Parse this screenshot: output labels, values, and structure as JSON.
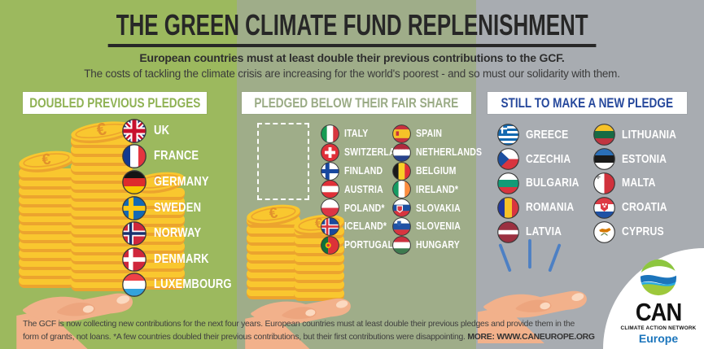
{
  "header": {
    "title": "THE GREEN CLIMATE FUND REPLENISHMENT",
    "subtitle_bold": "European countries must at least double their previous contributions to the GCF.",
    "subtitle": "The costs of tackling the climate crisis are increasing for the world's poorest - and so must our solidarity with them."
  },
  "columns": [
    {
      "header": "DOUBLED PREVIOUS PLEDGES",
      "countries": [
        {
          "label": "UK",
          "flag": "uk"
        },
        {
          "label": "FRANCE",
          "flag": "france"
        },
        {
          "label": "GERMANY",
          "flag": "germany"
        },
        {
          "label": "SWEDEN",
          "flag": "sweden"
        },
        {
          "label": "NORWAY",
          "flag": "norway"
        },
        {
          "label": "DENMARK",
          "flag": "denmark"
        },
        {
          "label": "LUXEMBOURG",
          "flag": "luxembourg"
        }
      ]
    },
    {
      "header": "PLEDGED BELOW THEIR FAIR SHARE",
      "countries_left": [
        {
          "label": "ITALY",
          "flag": "italy"
        },
        {
          "label": "SWITZERLAND",
          "flag": "switzerland"
        },
        {
          "label": "FINLAND",
          "flag": "finland"
        },
        {
          "label": "AUSTRIA",
          "flag": "austria"
        },
        {
          "label": "POLAND*",
          "flag": "poland"
        },
        {
          "label": "ICELAND*",
          "flag": "iceland"
        },
        {
          "label": "PORTUGAL",
          "flag": "portugal"
        }
      ],
      "countries_right": [
        {
          "label": "SPAIN",
          "flag": "spain"
        },
        {
          "label": "NETHERLANDS",
          "flag": "netherlands"
        },
        {
          "label": "BELGIUM",
          "flag": "belgium"
        },
        {
          "label": "IRELAND*",
          "flag": "ireland"
        },
        {
          "label": "SLOVAKIA",
          "flag": "slovakia"
        },
        {
          "label": "SLOVENIA",
          "flag": "slovenia"
        },
        {
          "label": "HUNGARY",
          "flag": "hungary"
        }
      ]
    },
    {
      "header": "STILL TO MAKE A NEW PLEDGE",
      "countries_left": [
        {
          "label": "GREECE",
          "flag": "greece"
        },
        {
          "label": "CZECHIA",
          "flag": "czechia"
        },
        {
          "label": "BULGARIA",
          "flag": "bulgaria"
        },
        {
          "label": "ROMANIA",
          "flag": "romania"
        },
        {
          "label": "LATVIA",
          "flag": "latvia"
        }
      ],
      "countries_right": [
        {
          "label": "LITHUANIA",
          "flag": "lithuania"
        },
        {
          "label": "ESTONIA",
          "flag": "estonia"
        },
        {
          "label": "MALTA",
          "flag": "malta"
        },
        {
          "label": "CROATIA",
          "flag": "croatia"
        },
        {
          "label": "CYPRUS",
          "flag": "cyprus"
        }
      ]
    }
  ],
  "footer": {
    "line1": "The GCF is now collecting new contributions for the next four years. European countries must at least double their previous pledges and provide them in the",
    "line2": "form of grants, not loans. *A few countries doubled their previous contributions, but their first contributions were disappointing. ",
    "more_label": "MORE: WWW.CANEUROPE.ORG"
  },
  "logo": {
    "org": "CAN",
    "tagline": "CLIMATE ACTION NETWORK",
    "region": "Europe"
  },
  "icons": {
    "coin_symbol": "€"
  },
  "colors": {
    "band_doubled": "#9cb95e",
    "band_below": "#9fad89",
    "band_new_pledge": "#a8acb1",
    "accent_doubled": "#8fb254",
    "accent_below": "#9aab85",
    "accent_new_pledge": "#27499c",
    "title_text": "#272727",
    "country_label": "#ffffff",
    "coin": "#f9c72f",
    "coin_edge": "#eca42e",
    "skin": "#f2b18b",
    "footer_text": "#3f3f3f",
    "logo_blue": "#1b75bc"
  },
  "flags": {
    "uk": [
      [
        "r",
        0,
        0,
        60,
        60,
        "#1a2f7a"
      ],
      [
        "l",
        0,
        0,
        60,
        60,
        "#ffffff",
        13
      ],
      [
        "l",
        60,
        0,
        0,
        60,
        "#ffffff",
        13
      ],
      [
        "l",
        0,
        0,
        60,
        60,
        "#c8102e",
        5
      ],
      [
        "l",
        60,
        0,
        0,
        60,
        "#c8102e",
        5
      ],
      [
        "r",
        21,
        0,
        18,
        60,
        "#ffffff"
      ],
      [
        "r",
        0,
        21,
        60,
        18,
        "#ffffff"
      ],
      [
        "r",
        25,
        0,
        10,
        60,
        "#c8102e"
      ],
      [
        "r",
        0,
        25,
        60,
        10,
        "#c8102e"
      ]
    ],
    "france": [
      [
        "r",
        0,
        0,
        20,
        60,
        "#123a8f"
      ],
      [
        "r",
        20,
        0,
        20,
        60,
        "#ffffff"
      ],
      [
        "r",
        40,
        0,
        20,
        60,
        "#e4353f"
      ]
    ],
    "germany": [
      [
        "r",
        0,
        0,
        60,
        20,
        "#151515"
      ],
      [
        "r",
        0,
        20,
        60,
        20,
        "#dd2c2c"
      ],
      [
        "r",
        0,
        40,
        60,
        20,
        "#f7c800"
      ]
    ],
    "sweden": [
      [
        "r",
        0,
        0,
        60,
        60,
        "#1569b3"
      ],
      [
        "r",
        16,
        0,
        12,
        60,
        "#fdc916"
      ],
      [
        "r",
        0,
        24,
        60,
        12,
        "#fdc916"
      ]
    ],
    "norway": [
      [
        "r",
        0,
        0,
        60,
        60,
        "#d0273c"
      ],
      [
        "r",
        14,
        0,
        14,
        60,
        "#ffffff"
      ],
      [
        "r",
        0,
        23,
        60,
        14,
        "#ffffff"
      ],
      [
        "r",
        17.5,
        0,
        7,
        60,
        "#19316f"
      ],
      [
        "r",
        0,
        26.5,
        60,
        7,
        "#19316f"
      ]
    ],
    "denmark": [
      [
        "r",
        0,
        0,
        60,
        60,
        "#d0273c"
      ],
      [
        "r",
        16,
        0,
        11,
        60,
        "#ffffff"
      ],
      [
        "r",
        0,
        24.5,
        60,
        11,
        "#ffffff"
      ]
    ],
    "luxembourg": [
      [
        "r",
        0,
        0,
        60,
        20,
        "#ee4147"
      ],
      [
        "r",
        0,
        20,
        60,
        20,
        "#ffffff"
      ],
      [
        "r",
        0,
        40,
        60,
        20,
        "#33a3dc"
      ]
    ],
    "italy": [
      [
        "r",
        0,
        0,
        20,
        60,
        "#169b52"
      ],
      [
        "r",
        20,
        0,
        20,
        60,
        "#ffffff"
      ],
      [
        "r",
        40,
        0,
        20,
        60,
        "#d8353f"
      ]
    ],
    "switzerland": [
      [
        "r",
        0,
        0,
        60,
        60,
        "#e03038"
      ],
      [
        "r",
        25,
        13,
        10,
        34,
        "#ffffff"
      ],
      [
        "r",
        13,
        25,
        34,
        10,
        "#ffffff"
      ]
    ],
    "finland": [
      [
        "r",
        0,
        0,
        60,
        60,
        "#ffffff"
      ],
      [
        "r",
        15,
        0,
        13,
        60,
        "#17479e"
      ],
      [
        "r",
        0,
        23.5,
        60,
        13,
        "#17479e"
      ]
    ],
    "austria": [
      [
        "r",
        0,
        0,
        60,
        20,
        "#e03038"
      ],
      [
        "r",
        0,
        20,
        60,
        20,
        "#ffffff"
      ],
      [
        "r",
        0,
        40,
        60,
        20,
        "#e03038"
      ]
    ],
    "poland": [
      [
        "r",
        0,
        0,
        60,
        30,
        "#ffffff"
      ],
      [
        "r",
        0,
        30,
        60,
        30,
        "#dc3545"
      ]
    ],
    "iceland": [
      [
        "r",
        0,
        0,
        60,
        60,
        "#1b4a9c"
      ],
      [
        "r",
        14,
        0,
        14,
        60,
        "#ffffff"
      ],
      [
        "r",
        0,
        23,
        60,
        14,
        "#ffffff"
      ],
      [
        "r",
        17.5,
        0,
        7,
        60,
        "#d8353f"
      ],
      [
        "r",
        0,
        26.5,
        60,
        7,
        "#d8353f"
      ]
    ],
    "portugal": [
      [
        "r",
        0,
        0,
        24,
        60,
        "#10713a"
      ],
      [
        "r",
        24,
        0,
        36,
        60,
        "#dc3238"
      ],
      [
        "c",
        24,
        30,
        9,
        "#f7c800"
      ],
      [
        "c",
        24,
        30,
        5,
        "#dc3238"
      ]
    ],
    "spain": [
      [
        "r",
        0,
        0,
        60,
        16,
        "#c8313e"
      ],
      [
        "r",
        0,
        16,
        60,
        28,
        "#f6c228"
      ],
      [
        "r",
        0,
        44,
        60,
        16,
        "#c8313e"
      ],
      [
        "r",
        12,
        22,
        9,
        14,
        "#c8313e"
      ]
    ],
    "netherlands": [
      [
        "r",
        0,
        0,
        60,
        20,
        "#b0293c"
      ],
      [
        "r",
        0,
        20,
        60,
        20,
        "#ffffff"
      ],
      [
        "r",
        0,
        40,
        60,
        20,
        "#27428c"
      ]
    ],
    "belgium": [
      [
        "r",
        0,
        0,
        20,
        60,
        "#1a1a1a"
      ],
      [
        "r",
        20,
        0,
        20,
        60,
        "#f8d028"
      ],
      [
        "r",
        40,
        0,
        20,
        60,
        "#e03038"
      ]
    ],
    "ireland": [
      [
        "r",
        0,
        0,
        20,
        60,
        "#169b62"
      ],
      [
        "r",
        20,
        0,
        20,
        60,
        "#ffffff"
      ],
      [
        "r",
        40,
        0,
        20,
        60,
        "#ff8d3e"
      ]
    ],
    "slovakia": [
      [
        "r",
        0,
        0,
        60,
        20,
        "#ffffff"
      ],
      [
        "r",
        0,
        20,
        60,
        20,
        "#1c4fa0"
      ],
      [
        "r",
        0,
        40,
        60,
        20,
        "#d8353f"
      ],
      [
        "p",
        "14,22 34,22 34,38 24,46 14,38",
        "#ffffff"
      ],
      [
        "p",
        "17,25 31,25 31,37 24,42 17,37",
        "#d8353f"
      ]
    ],
    "slovenia": [
      [
        "r",
        0,
        0,
        60,
        20,
        "#ffffff"
      ],
      [
        "r",
        0,
        20,
        60,
        20,
        "#2052a5"
      ],
      [
        "r",
        0,
        40,
        60,
        20,
        "#d8353f"
      ],
      [
        "p",
        "16,12 28,12 28,24 22,29 16,24",
        "#2b5fb0"
      ]
    ],
    "hungary": [
      [
        "r",
        0,
        0,
        60,
        20,
        "#cd3140"
      ],
      [
        "r",
        0,
        20,
        60,
        20,
        "#ffffff"
      ],
      [
        "r",
        0,
        40,
        60,
        20,
        "#3d7a4e"
      ]
    ],
    "greece": [
      [
        "r",
        0,
        0,
        60,
        60,
        "#ffffff"
      ],
      [
        "r",
        0,
        0,
        60,
        6.7,
        "#1269b0"
      ],
      [
        "r",
        0,
        13.3,
        60,
        6.7,
        "#1269b0"
      ],
      [
        "r",
        0,
        26.7,
        60,
        6.7,
        "#1269b0"
      ],
      [
        "r",
        0,
        40,
        60,
        6.7,
        "#1269b0"
      ],
      [
        "r",
        0,
        53.3,
        60,
        6.7,
        "#1269b0"
      ],
      [
        "r",
        0,
        0,
        27,
        27,
        "#1269b0"
      ],
      [
        "r",
        11,
        0,
        5,
        27,
        "#ffffff"
      ],
      [
        "r",
        0,
        11,
        27,
        5,
        "#ffffff"
      ]
    ],
    "czechia": [
      [
        "r",
        0,
        0,
        60,
        30,
        "#ffffff"
      ],
      [
        "r",
        0,
        30,
        60,
        30,
        "#d8353f"
      ],
      [
        "p",
        "0,0 32,30 0,60",
        "#1c4fa0"
      ]
    ],
    "bulgaria": [
      [
        "r",
        0,
        0,
        60,
        20,
        "#ffffff"
      ],
      [
        "r",
        0,
        20,
        60,
        20,
        "#119b77"
      ],
      [
        "r",
        0,
        40,
        60,
        20,
        "#d8353f"
      ]
    ],
    "romania": [
      [
        "r",
        0,
        0,
        20,
        60,
        "#20389f"
      ],
      [
        "r",
        20,
        0,
        20,
        60,
        "#f6c228"
      ],
      [
        "r",
        40,
        0,
        20,
        60,
        "#d8353f"
      ]
    ],
    "latvia": [
      [
        "r",
        0,
        0,
        60,
        60,
        "#9b3040"
      ],
      [
        "r",
        0,
        24,
        60,
        12,
        "#ffffff"
      ]
    ],
    "lithuania": [
      [
        "r",
        0,
        0,
        60,
        20,
        "#f6c228"
      ],
      [
        "r",
        0,
        20,
        60,
        20,
        "#176a44"
      ],
      [
        "r",
        0,
        40,
        60,
        20,
        "#c03540"
      ]
    ],
    "estonia": [
      [
        "r",
        0,
        0,
        60,
        20,
        "#2a6fb8"
      ],
      [
        "r",
        0,
        20,
        60,
        20,
        "#1a1a1a"
      ],
      [
        "r",
        0,
        40,
        60,
        20,
        "#ffffff"
      ]
    ],
    "malta": [
      [
        "r",
        0,
        0,
        30,
        60,
        "#ffffff"
      ],
      [
        "r",
        30,
        0,
        30,
        60,
        "#d0313c"
      ],
      [
        "r",
        11,
        6,
        4,
        12,
        "#9a9a9a"
      ],
      [
        "r",
        7,
        10,
        12,
        4,
        "#9a9a9a"
      ]
    ],
    "croatia": [
      [
        "r",
        0,
        0,
        60,
        20,
        "#dd3a44"
      ],
      [
        "r",
        0,
        20,
        60,
        20,
        "#ffffff"
      ],
      [
        "r",
        0,
        40,
        60,
        20,
        "#2052a5"
      ],
      [
        "p",
        "20,16 40,16 40,32 30,40 20,32",
        "#dd3a44"
      ],
      [
        "r",
        24,
        18,
        5,
        5,
        "#ffffff"
      ],
      [
        "r",
        32,
        18,
        5,
        5,
        "#ffffff"
      ],
      [
        "r",
        28,
        24,
        5,
        5,
        "#ffffff"
      ]
    ],
    "cyprus": [
      [
        "r",
        0,
        0,
        60,
        60,
        "#ffffff"
      ],
      [
        "p",
        "16,24 24,20 34,22 44,18 48,24 38,30 26,30 18,28",
        "#d57800"
      ],
      [
        "l",
        22,
        38,
        29,
        33,
        "#5b7a3a",
        2.5
      ],
      [
        "l",
        38,
        38,
        31,
        33,
        "#5b7a3a",
        2.5
      ]
    ]
  }
}
